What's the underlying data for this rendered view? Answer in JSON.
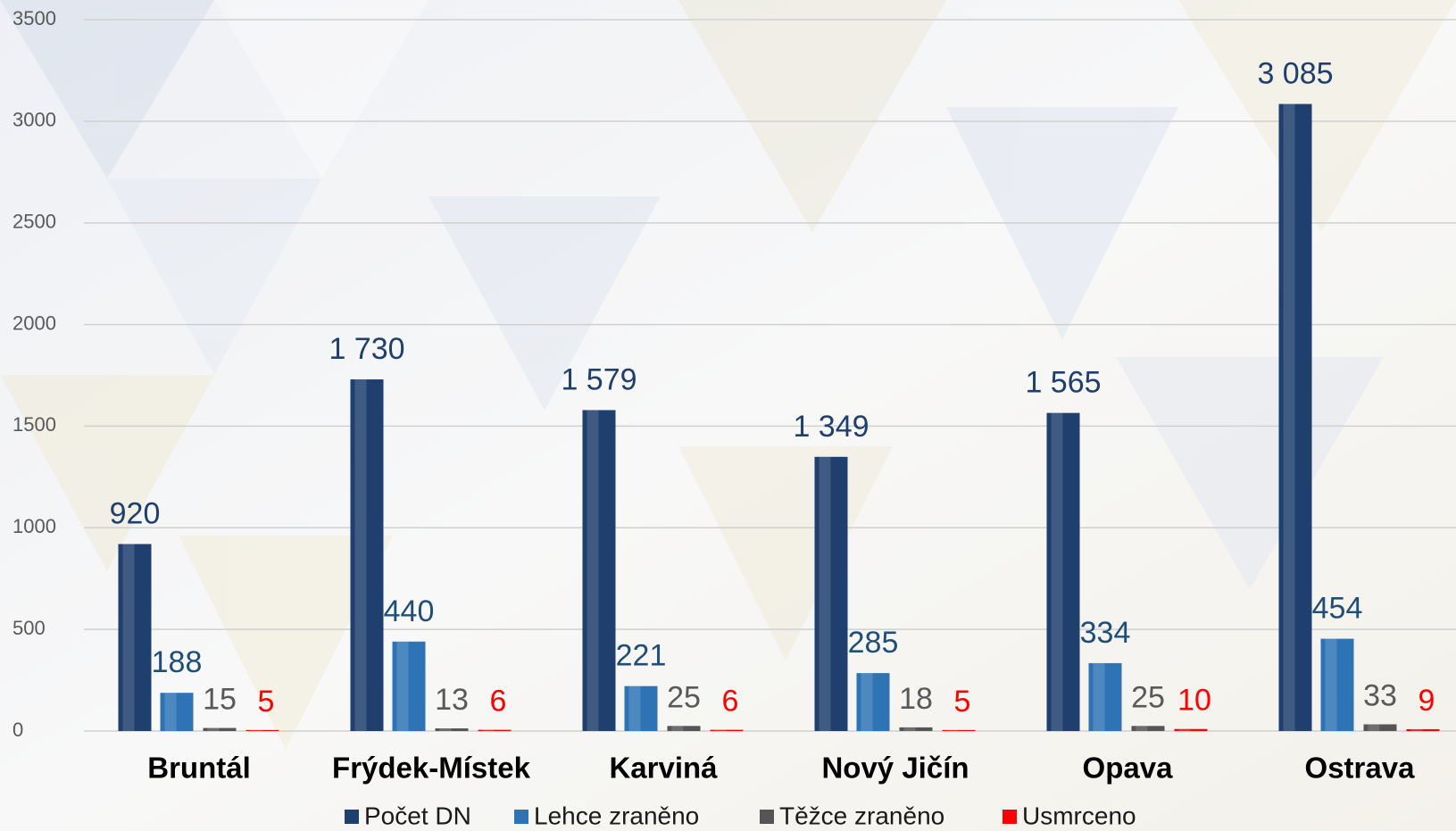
{
  "chart_data": {
    "type": "bar",
    "categories": [
      "Bruntál",
      "Frýdek-Místek",
      "Karviná",
      "Nový Jičín",
      "Opava",
      "Ostrava"
    ],
    "series": [
      {
        "name": "Počet DN",
        "color": "#1f3f6e",
        "label_color": "#1f3f6e",
        "values": [
          920,
          1730,
          1579,
          1349,
          1565,
          3085
        ],
        "value_labels": [
          "920",
          "1 730",
          "1 579",
          "1 349",
          "1 565",
          "3 085"
        ]
      },
      {
        "name": "Lehce zraněno",
        "color": "#2e74b5",
        "label_color": "#1f4e79",
        "values": [
          188,
          440,
          221,
          285,
          334,
          454
        ]
      },
      {
        "name": "Těžce zraněno",
        "color": "#555555",
        "label_color": "#595959",
        "values": [
          15,
          13,
          25,
          18,
          25,
          33
        ]
      },
      {
        "name": "Usmrceno",
        "color": "#ff0000",
        "label_color": "#ff0000",
        "values": [
          5,
          6,
          6,
          5,
          10,
          9
        ]
      }
    ],
    "ylim": [
      0,
      3500
    ],
    "yticks": [
      0,
      500,
      1000,
      1500,
      2000,
      2500,
      3000,
      3500
    ],
    "grid": true,
    "legend": "bottom"
  }
}
